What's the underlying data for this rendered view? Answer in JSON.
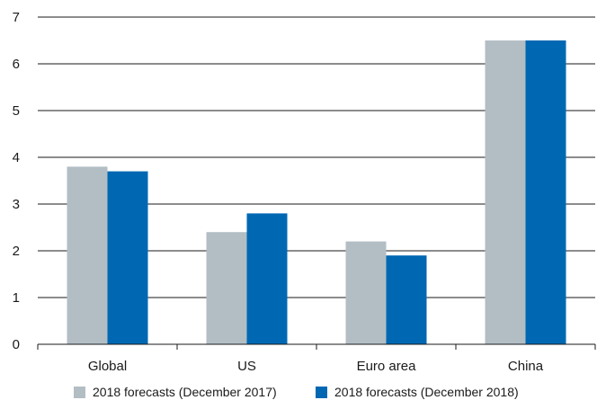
{
  "chart_data": {
    "type": "bar",
    "title": "",
    "xlabel": "",
    "ylabel": "",
    "ylim": [
      0,
      7
    ],
    "yticks": [
      0,
      1,
      2,
      3,
      4,
      5,
      6,
      7
    ],
    "grid": true,
    "legend_position": "bottom",
    "categories": [
      "Global",
      "US",
      "Euro area",
      "China"
    ],
    "series": [
      {
        "name": "2018 forecasts (December 2017)",
        "color": "#b3bec4",
        "values": [
          3.8,
          2.4,
          2.2,
          6.5
        ]
      },
      {
        "name": "2018 forecasts (December 2018)",
        "color": "#0068b3",
        "values": [
          3.7,
          2.8,
          1.9,
          6.5
        ]
      }
    ]
  }
}
